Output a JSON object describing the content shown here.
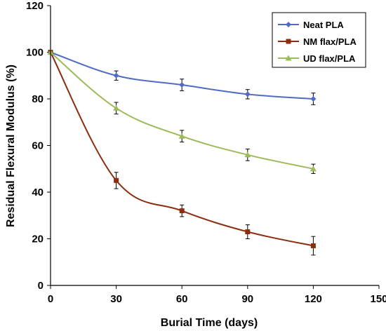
{
  "chart_data": {
    "type": "line",
    "xlabel": "Burial Time (days)",
    "ylabel": "Residual Flexural Modulus (%)",
    "xlim": [
      0,
      150
    ],
    "ylim": [
      0,
      120
    ],
    "xticks": [
      0,
      30,
      60,
      90,
      120,
      150
    ],
    "yticks": [
      0,
      20,
      40,
      60,
      80,
      100,
      120
    ],
    "grid": false,
    "legend_position": "top-right",
    "x": [
      0,
      30,
      60,
      90,
      120
    ],
    "series": [
      {
        "name": "Neat PLA",
        "color": "#4F6BC4",
        "marker": "diamond",
        "values": [
          100,
          90,
          86,
          82,
          80
        ],
        "errors": [
          0,
          2,
          2.5,
          2,
          2.5
        ]
      },
      {
        "name": "NM flax/PLA",
        "color": "#8B2E0F",
        "marker": "square",
        "values": [
          100,
          45,
          32,
          23,
          17
        ],
        "errors": [
          0,
          3.5,
          2.5,
          3,
          4
        ]
      },
      {
        "name": "UD flax/PLA",
        "color": "#9BBB59",
        "marker": "triangle",
        "values": [
          100,
          76,
          64,
          56,
          50
        ],
        "errors": [
          0,
          2.5,
          2.5,
          2.5,
          2
        ]
      }
    ]
  }
}
